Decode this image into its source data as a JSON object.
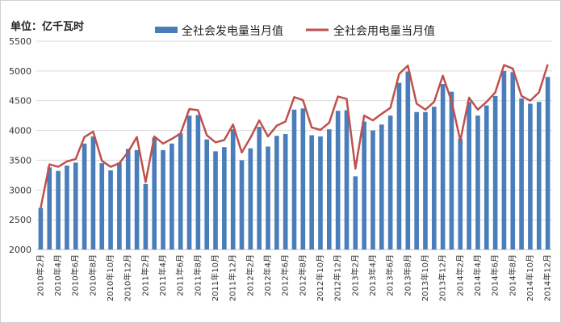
{
  "unit_label": "单位：亿千瓦时",
  "colors": {
    "bar": "#4a7ebb",
    "line": "#c0504d",
    "grid": "#d9d9d9",
    "axis": "#bfbfbf"
  },
  "chart_data": {
    "type": "bar",
    "title": "",
    "ylim": [
      2000,
      5500
    ],
    "yticks": [
      2000,
      2500,
      3000,
      3500,
      4000,
      4500,
      5000,
      5500
    ],
    "grid": true,
    "legend_position": "top",
    "categories": [
      "2010年2月",
      "2010年3月",
      "2010年4月",
      "2010年5月",
      "2010年6月",
      "2010年7月",
      "2010年8月",
      "2010年9月",
      "2010年10月",
      "2010年11月",
      "2010年12月",
      "2011年1月",
      "2011年2月",
      "2011年3月",
      "2011年4月",
      "2011年5月",
      "2011年6月",
      "2011年7月",
      "2011年8月",
      "2011年9月",
      "2011年10月",
      "2011年11月",
      "2011年12月",
      "2012年1月",
      "2012年2月",
      "2012年3月",
      "2012年4月",
      "2012年5月",
      "2012年6月",
      "2012年7月",
      "2012年8月",
      "2012年9月",
      "2012年10月",
      "2012年11月",
      "2012年12月",
      "2013年1月",
      "2013年2月",
      "2013年3月",
      "2013年4月",
      "2013年5月",
      "2013年6月",
      "2013年7月",
      "2013年8月",
      "2013年9月",
      "2013年10月",
      "2013年11月",
      "2013年12月",
      "2014年1月",
      "2014年2月",
      "2014年3月",
      "2014年4月",
      "2014年5月",
      "2014年6月",
      "2014年7月",
      "2014年8月",
      "2014年9月",
      "2014年10月",
      "2014年11月",
      "2014年12月"
    ],
    "x_tick_labels": [
      "2010年2月",
      "2010年4月",
      "2010年6月",
      "2010年8月",
      "2010年10月",
      "2010年12月",
      "2011年2月",
      "2011年4月",
      "2011年6月",
      "2011年8月",
      "2011年10月",
      "2011年12月",
      "2012年2月",
      "2012年4月",
      "2012年6月",
      "2012年8月",
      "2012年10月",
      "2012年12月",
      "2013年2月",
      "2013年4月",
      "2013年6月",
      "2013年8月",
      "2013年10月",
      "2013年12月",
      "2014年2月",
      "2014年4月",
      "2014年6月",
      "2014年8月",
      "2014年10月",
      "2014年12月"
    ],
    "series": [
      {
        "name": "全社会发电量当月值",
        "kind": "bar",
        "values": [
          2700,
          3380,
          3320,
          3410,
          3460,
          3780,
          3900,
          3450,
          3330,
          3460,
          3690,
          3670,
          3100,
          3880,
          3670,
          3780,
          3950,
          4250,
          4260,
          3850,
          3650,
          3720,
          4020,
          3500,
          3700,
          4060,
          3730,
          3910,
          3940,
          4350,
          4370,
          3920,
          3900,
          4020,
          4330,
          4340,
          3230,
          4150,
          4000,
          4100,
          4250,
          4800,
          4990,
          4310,
          4310,
          4400,
          4780,
          4650,
          3860,
          4480,
          4250,
          4420,
          4580,
          5000,
          4980,
          4540,
          4450,
          4480,
          4900
        ]
      },
      {
        "name": "全社会用电量当月值",
        "kind": "line",
        "values": [
          2700,
          3430,
          3390,
          3480,
          3520,
          3890,
          3980,
          3490,
          3390,
          3450,
          3640,
          3890,
          3130,
          3900,
          3780,
          3860,
          3950,
          4360,
          4340,
          3920,
          3800,
          3840,
          4100,
          3630,
          3880,
          4170,
          3900,
          4080,
          4150,
          4560,
          4510,
          4050,
          4010,
          4130,
          4570,
          4530,
          3360,
          4250,
          4170,
          4280,
          4380,
          4950,
          5090,
          4450,
          4350,
          4480,
          4920,
          4490,
          3830,
          4550,
          4350,
          4480,
          4640,
          5100,
          5040,
          4580,
          4500,
          4640,
          5110
        ]
      }
    ]
  }
}
